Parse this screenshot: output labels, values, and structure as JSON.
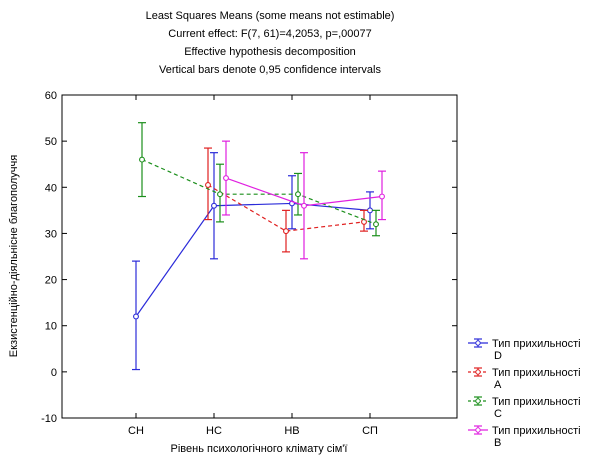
{
  "chart_data": {
    "type": "line",
    "title": [
      "Least Squares Means (some means not estimable)",
      "Current effect: F(7, 61)=4,2053, p=,00077",
      "Effective hypothesis decomposition",
      "Vertical bars denote 0,95 confidence intervals"
    ],
    "xlabel": "Рівень психологічного клімату сім'ї",
    "ylabel": "Екзистенційно-діяльнісне благополуччя",
    "categories": [
      "СН",
      "НС",
      "НВ",
      "СП"
    ],
    "ylim": [
      -10,
      60
    ],
    "yticks": [
      -10,
      0,
      10,
      20,
      30,
      40,
      50,
      60
    ],
    "legend_position": "bottom-right",
    "series": [
      {
        "name": "Тип прихильності D",
        "color": "#2b2bd9",
        "style": "solid",
        "marker": "circle",
        "values": [
          12,
          36,
          36.5,
          35
        ],
        "lower": [
          0.5,
          24.5,
          31,
          31
        ],
        "upper": [
          24,
          47.5,
          42.5,
          39
        ]
      },
      {
        "name": "Тип прихильності A",
        "color": "#e02020",
        "style": "dashed",
        "marker": "circle",
        "values": [
          null,
          40.5,
          30.5,
          32.5
        ],
        "lower": [
          null,
          33,
          26,
          30.5
        ],
        "upper": [
          null,
          48.5,
          35,
          35
        ]
      },
      {
        "name": "Тип прихильності C",
        "color": "#1c8f1c",
        "style": "dashed",
        "marker": "circle",
        "values": [
          46,
          38.5,
          38.5,
          32
        ],
        "lower": [
          38,
          32.5,
          34,
          29.5
        ],
        "upper": [
          54,
          45,
          43,
          35
        ]
      },
      {
        "name": "Тип прихильності B",
        "color": "#e020e0",
        "style": "solid",
        "marker": "circle",
        "values": [
          null,
          42,
          36,
          38
        ],
        "lower": [
          null,
          34,
          24.5,
          33
        ],
        "upper": [
          null,
          50,
          47.5,
          43.5
        ]
      }
    ]
  }
}
